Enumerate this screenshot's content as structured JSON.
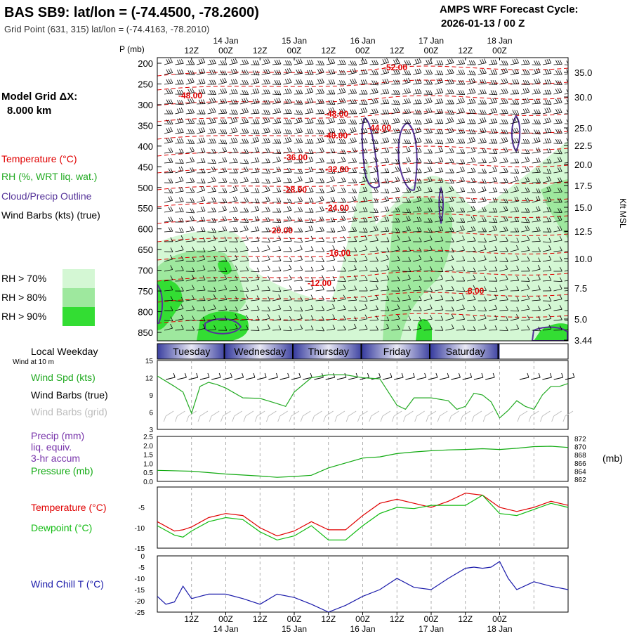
{
  "header": {
    "title": "BAS SB9:  lat/lon = (-74.4500, -78.2600)",
    "subtitle": "Grid Point (631, 315) lat/lon = (-74.4163, -78.2010)",
    "cycle_label": "AMPS WRF Forecast Cycle:",
    "cycle_value": "2026-01-13 / 00  Z"
  },
  "left_panel": {
    "grid_label": "Model Grid ΔX:",
    "grid_value": "8.000 km",
    "temperature_label": "Temperature (°C)",
    "rh_label": "RH (%, WRT liq. wat.)",
    "cloud_label": "Cloud/Precip Outline",
    "wind_label": "Wind Barbs (kts) (true)",
    "rh_legend": [
      {
        "label": "RH > 70%",
        "color": "#d4f7d4"
      },
      {
        "label": "RH > 80%",
        "color": "#9ee89e"
      },
      {
        "label": "RH > 90%",
        "color": "#33dd33"
      }
    ],
    "local_weekday": "Local Weekday",
    "wind_at_10m": "Wind at 10 m",
    "wind_spd_label": "Wind Spd (kts)",
    "wind_barbs_true_label": "Wind Barbs (true)",
    "wind_barbs_grid_label": "Wind Barbs (grid)",
    "precip_label_1": "Precip (mm)",
    "precip_label_2": "liq. equiv.",
    "precip_label_3": "3-hr accum",
    "pressure_label": "Pressure (mb)",
    "temp_label": "Temperature (°C)",
    "dewpoint_label": "Dewpoint (°C)",
    "windchill_label": "Wind Chill T (°C)"
  },
  "colors": {
    "temperature": "#e00000",
    "rh": "#22aa22",
    "cloud": "#553399",
    "wind_spd": "#22aa22",
    "dewpoint": "#11bb11",
    "windchill": "#1a1aaa",
    "pressure": "#11aa11",
    "day_band_dark": "#3a3fa0",
    "day_band_light": "#e8e8f4"
  },
  "time_axis": {
    "top_hours": [
      "12Z",
      "00Z",
      "12Z",
      "00Z",
      "12Z",
      "00Z",
      "12Z",
      "00Z",
      "12Z",
      "00Z"
    ],
    "top_dates": [
      "14 Jan",
      "15 Jan",
      "16 Jan",
      "17 Jan",
      "18 Jan"
    ],
    "bottom_hours": [
      "12Z",
      "00Z",
      "12Z",
      "00Z",
      "12Z",
      "00Z",
      "12Z",
      "00Z",
      "12Z",
      "00Z"
    ],
    "bottom_dates": [
      "14 Jan",
      "15 Jan",
      "16 Jan",
      "17 Jan",
      "18 Jan"
    ],
    "weekdays": [
      "Tuesday",
      "Wednesday",
      "Thursday",
      "Friday",
      "Saturday"
    ]
  },
  "chart_data": [
    {
      "type": "heatmap",
      "name": "cross-section",
      "ylabel": "P (mb)",
      "y2label": "Kft MSL",
      "pressure_ticks": [
        "200",
        "250",
        "300",
        "350",
        "400",
        "450",
        "500",
        "550",
        "600",
        "650",
        "700",
        "750",
        "800",
        "850"
      ],
      "kft_ticks": [
        "35.0",
        "30.0",
        "25.0",
        "22.5",
        "20.0",
        "17.5",
        "15.0",
        "12.5",
        "10.0",
        "7.5",
        "5.0",
        "3.44"
      ],
      "temperature_labels": [
        "-52.00",
        "-48.00",
        "-48.00",
        "-44.00",
        "-40.00",
        "-36.00",
        "-32.00",
        "-28.00",
        "-24.00",
        "-20.00",
        "-16.00",
        "-12.00",
        "-8.00"
      ]
    },
    {
      "type": "line",
      "name": "wind-speed",
      "ylabel": "Wind Spd (kts)",
      "y_ticks": [
        "15",
        "12",
        "9",
        "6",
        "3"
      ],
      "ylim": [
        3,
        15
      ],
      "x_hours": [
        0,
        6,
        9,
        12,
        15,
        18,
        21,
        24,
        30,
        36,
        42,
        45,
        48,
        54,
        60,
        66,
        72,
        78,
        84,
        87,
        90,
        96,
        102,
        105,
        108,
        111,
        114,
        117,
        120,
        123,
        126,
        129,
        132,
        135,
        138,
        141,
        144
      ],
      "values": [
        12.3,
        10.5,
        9.5,
        5.8,
        10.5,
        11.2,
        10.8,
        10.2,
        8.5,
        8.4,
        7.5,
        7.0,
        9.5,
        12.0,
        12.5,
        12.5,
        12.0,
        11.8,
        7.2,
        6.5,
        8.5,
        8.5,
        8.0,
        6.5,
        7.0,
        9.3,
        9.0,
        7.8,
        5.0,
        6.3,
        8.0,
        7.0,
        6.5,
        9.0,
        10.5,
        10.5,
        11.0
      ]
    },
    {
      "type": "line",
      "name": "precip-pressure",
      "ylabel": "Precip (mm)",
      "y_ticks": [
        "2.5",
        "2.0",
        "1.5",
        "1.0",
        "0.5",
        "0.0"
      ],
      "y2_ticks": [
        "872",
        "870",
        "868",
        "866",
        "864",
        "862"
      ],
      "y2label": "(mb)",
      "ylim": [
        861.5,
        872.5
      ],
      "x_hours": [
        0,
        12,
        24,
        36,
        42,
        48,
        54,
        60,
        66,
        72,
        78,
        84,
        90,
        96,
        102,
        108,
        114,
        120,
        126,
        132,
        138,
        144
      ],
      "values": [
        864.2,
        864.0,
        863.3,
        862.8,
        862.5,
        862.7,
        863.0,
        864.8,
        866.0,
        867.2,
        867.5,
        868.3,
        868.7,
        869.0,
        869.2,
        869.3,
        869.5,
        869.3,
        869.6,
        870.0,
        870.1,
        869.8
      ]
    },
    {
      "type": "line",
      "name": "temperature-dewpoint",
      "y_ticks": [
        "-5",
        "-10",
        "-15"
      ],
      "ylim": [
        -15,
        0
      ],
      "x_hours": [
        0,
        6,
        9,
        12,
        18,
        24,
        30,
        36,
        42,
        48,
        54,
        60,
        66,
        72,
        78,
        84,
        90,
        96,
        102,
        108,
        114,
        120,
        126,
        132,
        138,
        144
      ],
      "series": [
        {
          "name": "Temperature",
          "values": [
            -8.5,
            -10.8,
            -10.5,
            -9.8,
            -7.5,
            -6.5,
            -7.0,
            -10.0,
            -12.0,
            -10.8,
            -8.5,
            -10.5,
            -10.5,
            -7.0,
            -4.0,
            -3.0,
            -4.0,
            -5.0,
            -3.5,
            -1.5,
            -2.0,
            -5.0,
            -6.0,
            -5.0,
            -3.5,
            -4.5
          ]
        },
        {
          "name": "Dewpoint",
          "values": [
            -9.5,
            -11.8,
            -12.3,
            -10.8,
            -8.5,
            -7.5,
            -8.0,
            -11.0,
            -13.0,
            -12.0,
            -9.5,
            -13.0,
            -13.0,
            -9.5,
            -6.5,
            -5.0,
            -5.3,
            -4.5,
            -4.5,
            -4.5,
            -2.0,
            -6.5,
            -7.0,
            -5.5,
            -4.0,
            -5.0
          ]
        }
      ]
    },
    {
      "type": "line",
      "name": "wind-chill",
      "ylabel": "Wind Chill T (°C)",
      "y_ticks": [
        "0",
        "-5",
        "-10",
        "-15",
        "-20",
        "-25"
      ],
      "ylim": [
        -25,
        0
      ],
      "x_hours": [
        0,
        3,
        6,
        9,
        12,
        15,
        18,
        21,
        24,
        30,
        36,
        42,
        48,
        54,
        60,
        66,
        72,
        78,
        84,
        90,
        96,
        102,
        108,
        111,
        114,
        117,
        120,
        123,
        126,
        132,
        138,
        144
      ],
      "values": [
        -18.0,
        -21.5,
        -20.5,
        -13.5,
        -19.0,
        -18.0,
        -17.0,
        -17.0,
        -17.0,
        -19.0,
        -21.5,
        -17.0,
        -18.5,
        -21.5,
        -25.0,
        -22.0,
        -18.0,
        -15.0,
        -10.0,
        -14.0,
        -15.0,
        -10.0,
        -5.5,
        -5.0,
        -5.5,
        -5.0,
        -2.5,
        -10.0,
        -15.0,
        -11.5,
        -13.5,
        -15.0
      ]
    }
  ]
}
